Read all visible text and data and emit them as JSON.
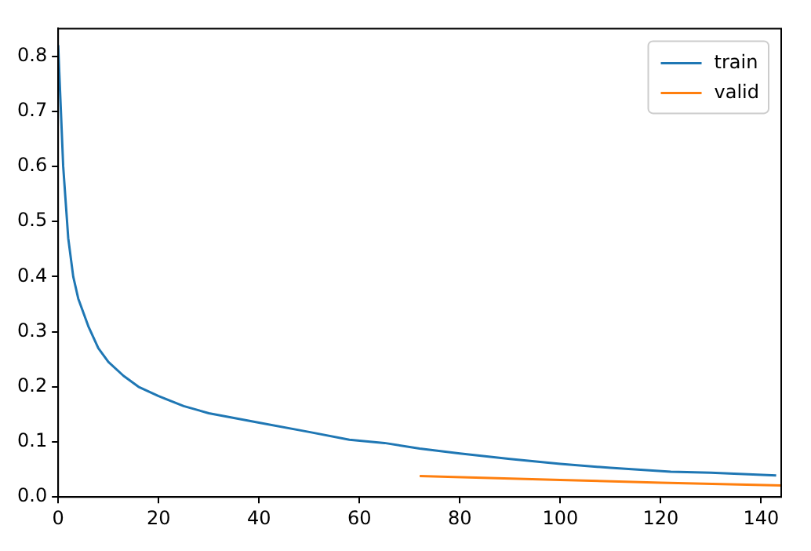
{
  "chart_data": {
    "type": "line",
    "x": [
      0,
      1,
      2,
      3,
      4,
      6,
      8,
      10,
      13,
      16,
      20,
      25,
      30,
      40,
      50,
      58,
      65,
      72,
      80,
      90,
      100,
      110,
      122,
      130,
      143
    ],
    "xlim": [
      0,
      144
    ],
    "xticks": [
      0,
      20,
      40,
      60,
      80,
      100,
      120,
      140
    ],
    "ylim": [
      0,
      0.85
    ],
    "yticks": [
      {
        "value": 0,
        "label": "0.0"
      },
      0.1,
      0.2,
      0.3,
      0.4,
      0.5,
      0.6,
      0.7,
      0.8
    ],
    "series": [
      {
        "name": "train",
        "color": "#1f77b4",
        "values": [
          0.82,
          0.6,
          0.47,
          0.4,
          0.36,
          0.31,
          0.27,
          0.245,
          0.22,
          0.2,
          0.183,
          0.165,
          0.152,
          0.135,
          0.118,
          0.104,
          0.098,
          0.088,
          0.079,
          0.069,
          0.06,
          0.053,
          0.046,
          0.044,
          0.039
        ]
      },
      {
        "name": "valid",
        "color": "#ff7f0e",
        "x": [
          72,
          100,
          120,
          144
        ],
        "values": [
          0.038,
          0.031,
          0.026,
          0.021
        ]
      }
    ],
    "legend": "top right",
    "grid": false,
    "marker": "none",
    "line_style": "solid"
  }
}
